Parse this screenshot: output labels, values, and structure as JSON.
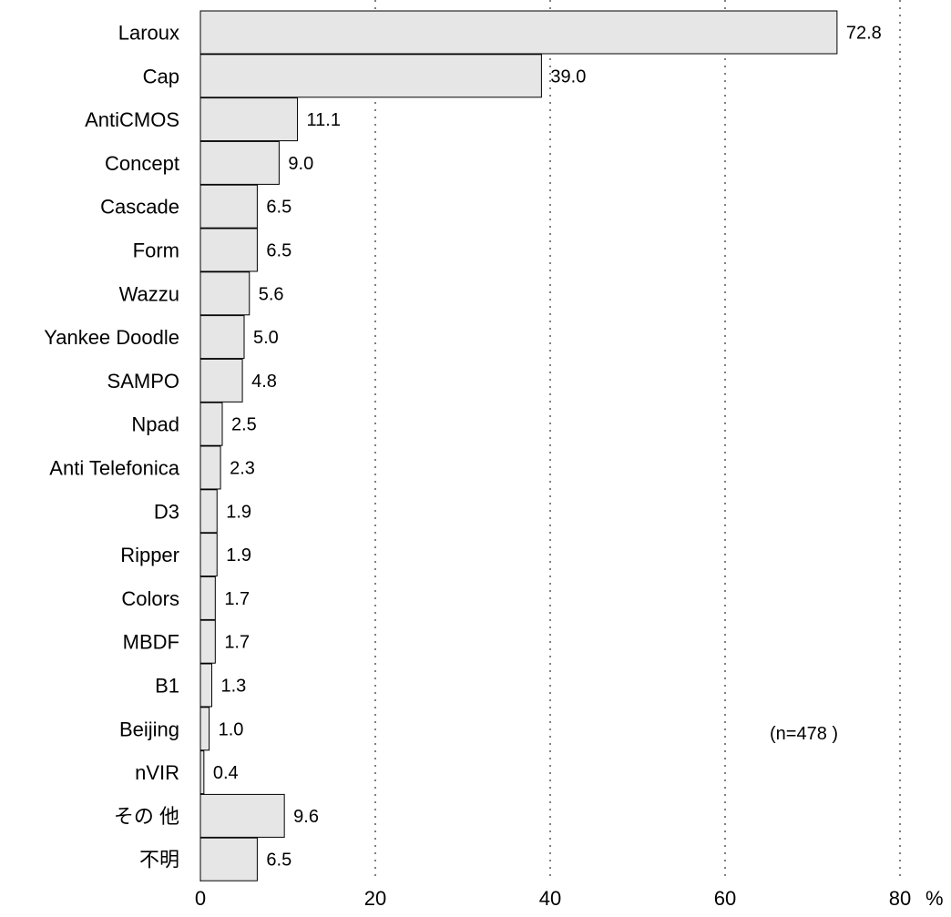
{
  "chart_data": {
    "type": "bar",
    "orientation": "horizontal",
    "categories": [
      "Laroux",
      "Cap",
      "AntiCMOS",
      "Concept",
      "Cascade",
      "Form",
      "Wazzu",
      "Yankee Doodle",
      "SAMPO",
      "Npad",
      "Anti Telefonica",
      "D3",
      "Ripper",
      "Colors",
      "MBDF",
      "B1",
      "Beijing",
      "nVIR",
      "その 他",
      "不明"
    ],
    "values": [
      72.8,
      39.0,
      11.1,
      9.0,
      6.5,
      6.5,
      5.6,
      5.0,
      4.8,
      2.5,
      2.3,
      1.9,
      1.9,
      1.7,
      1.7,
      1.3,
      1.0,
      0.4,
      9.6,
      6.5
    ],
    "value_labels": [
      "72.8",
      "39.0",
      "11.1",
      "9.0",
      "6.5",
      "6.5",
      "5.6",
      "5.0",
      "4.8",
      "2.5",
      "2.3",
      "1.9",
      "1.9",
      "1.7",
      "1.7",
      "1.3",
      "1.0",
      "0.4",
      "9.6",
      "6.5"
    ],
    "xlim": [
      0,
      80
    ],
    "xticks": [
      0,
      20,
      40,
      60,
      80
    ],
    "xtick_labels": [
      "0",
      "20",
      "40",
      "60",
      "80"
    ],
    "xunit": "%",
    "annotation": "(n=478 )",
    "grid": "vertical dotted",
    "title": "",
    "xlabel": "",
    "ylabel": "",
    "colors": {
      "bar_fill": "#e6e6e6",
      "bar_stroke": "#000000",
      "grid": "#000000"
    }
  }
}
